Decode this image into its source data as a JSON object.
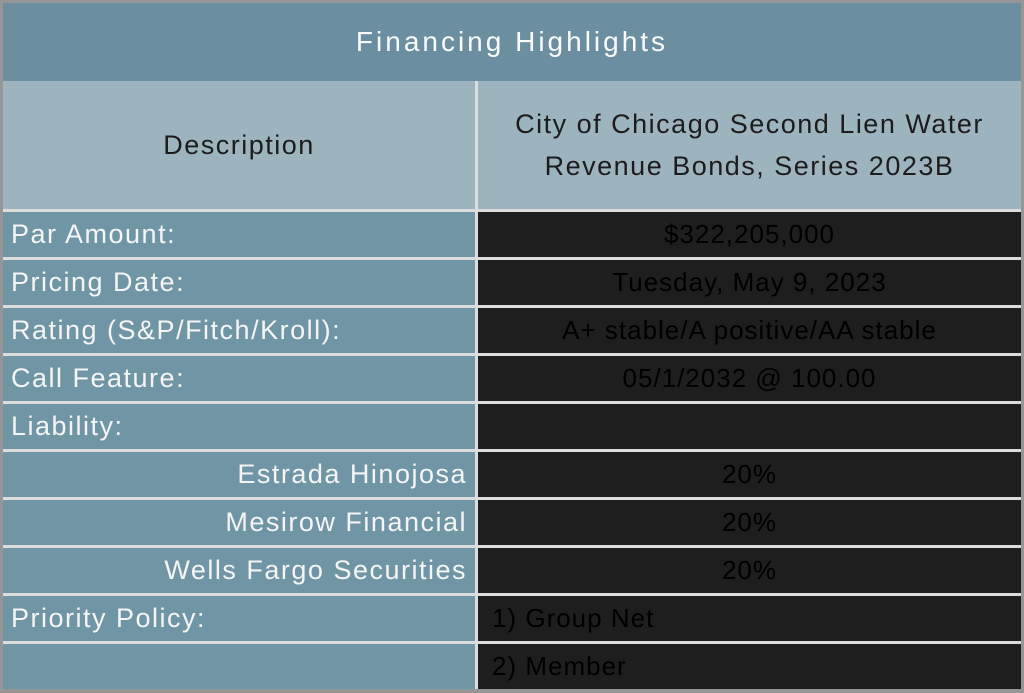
{
  "table": {
    "title": "Financing Highlights",
    "header": {
      "left": "Description",
      "right": "City of Chicago Second Lien Water Revenue Bonds, Series 2023B"
    },
    "rows": [
      {
        "label": "Par Amount:",
        "value": "$322,205,000"
      },
      {
        "label": "Pricing Date:",
        "value": "Tuesday, May 9, 2023"
      },
      {
        "label": "Rating (S&P/Fitch/Kroll):",
        "value": "A+ stable/A positive/AA stable"
      },
      {
        "label": "Call Feature:",
        "value": "05/1/2032 @ 100.00"
      },
      {
        "label": "Liability:",
        "value": ""
      },
      {
        "label": "Estrada Hinojosa",
        "value": "20%"
      },
      {
        "label": "Mesirow Financial",
        "value": "20%"
      },
      {
        "label": "Wells Fargo Securities",
        "value": "20%"
      },
      {
        "label": "Priority Policy:",
        "value": "1) Group Net"
      },
      {
        "label": "",
        "value": "2) Member"
      }
    ]
  },
  "colors": {
    "outer-border": "#969696",
    "title-bg": "#6B8FA0",
    "header-bg": "#9DB4BF",
    "label-bg": "#7095A4",
    "value-bg": "#1E1E1E",
    "separator": "#DCDCDC",
    "title-text": "#FAFAFA",
    "header-text": "#1C1C1C",
    "label-text": "#F5F5F5",
    "value-text": "#000000"
  }
}
